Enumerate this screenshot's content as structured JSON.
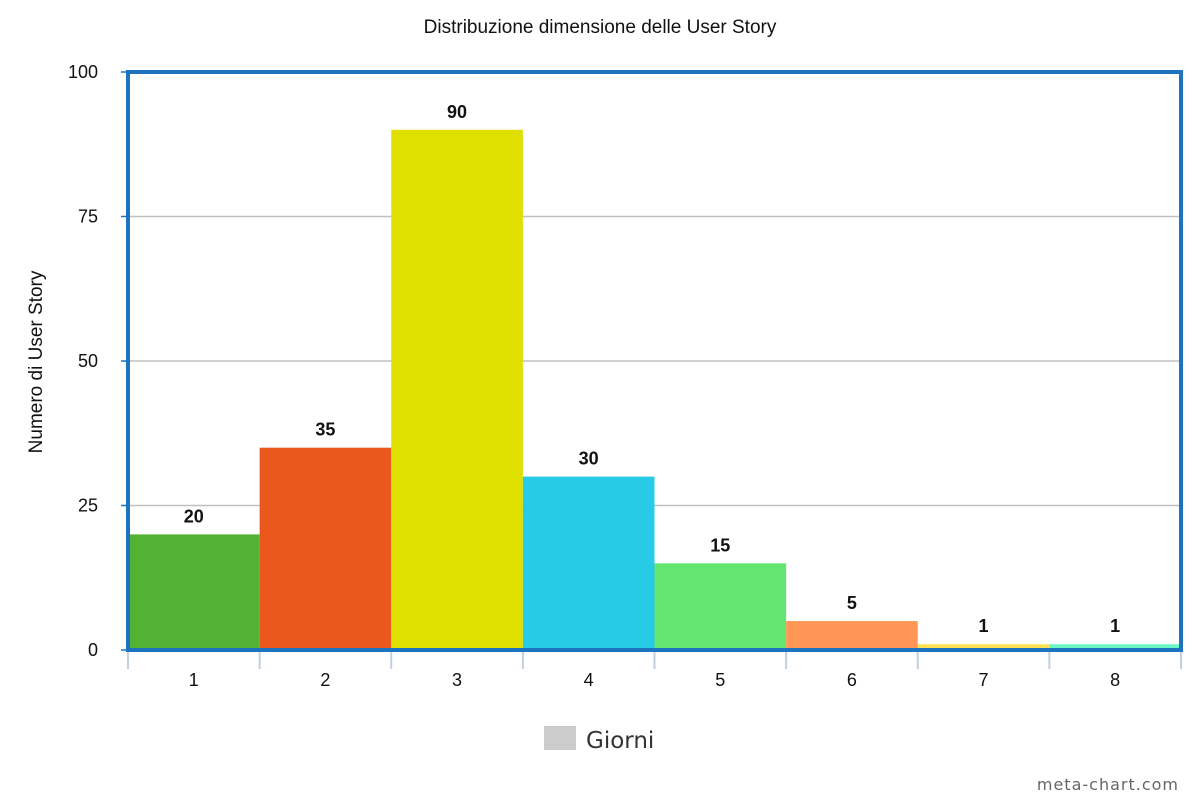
{
  "chart_data": {
    "type": "bar",
    "title": "Distribuzione dimensione delle User Story",
    "xlabel": "",
    "ylabel": "Numero di User Story",
    "categories": [
      "1",
      "2",
      "3",
      "4",
      "5",
      "6",
      "7",
      "8"
    ],
    "series": [
      {
        "name": "Giorni",
        "values": [
          20,
          35,
          90,
          30,
          15,
          5,
          1,
          1
        ]
      }
    ],
    "data_labels": [
      "20",
      "35",
      "90",
      "30",
      "15",
      "5",
      "1",
      "1"
    ],
    "y_ticks": [
      "0",
      "25",
      "50",
      "75",
      "100"
    ],
    "ylim": [
      0,
      100
    ],
    "grid": true,
    "legend": {
      "position": "bottom-center",
      "label": "Giorni",
      "swatch_color": "#cccccc"
    },
    "bar_colors": [
      "#52b233",
      "#eb581e",
      "#dfdf00",
      "#27cbe5",
      "#64e572",
      "#ff9655",
      "#ffe254",
      "#6af9c4"
    ],
    "plot_border_color": "#1e73be",
    "grid_color": "#c0c0c0"
  },
  "footer": {
    "credit": "meta-chart.com"
  }
}
